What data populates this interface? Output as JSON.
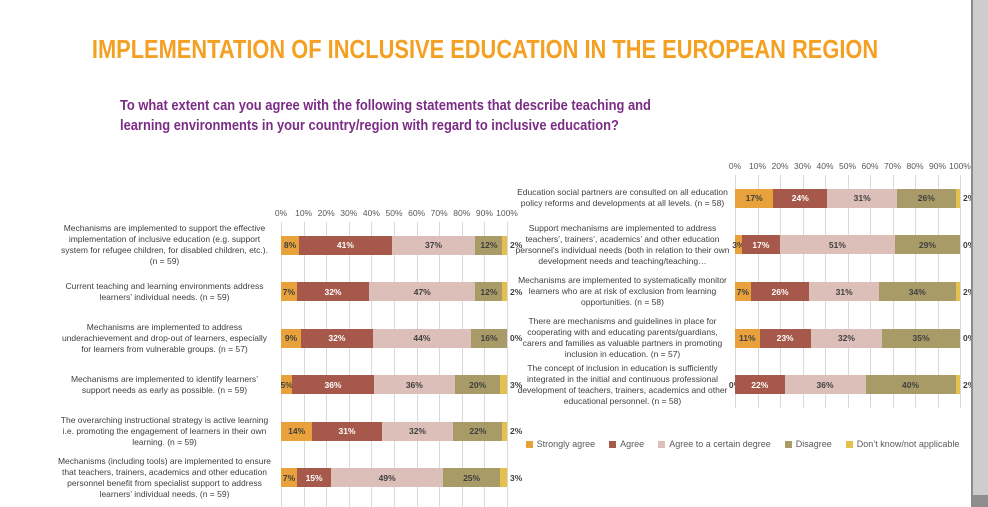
{
  "title": "IMPLEMENTATION OF INCLUSIVE EDUCATION IN THE EUROPEAN REGION",
  "subtitle": "To what extent can you agree with the following statements that describe teaching and learning environments in your country/region with regard to inclusive education?",
  "colors": {
    "title": "#F4A023",
    "subtitle": "#7B2C85",
    "strongly_agree": "#E9A23B",
    "agree": "#A6594A",
    "agree_certain": "#DCBFB8",
    "disagree": "#A89B68",
    "dont_know": "#E4C04F",
    "label_dark": "#3F3F3F",
    "label_light": "#FFFFFF",
    "axis_text": "#595959",
    "gridline": "#D9D9D9",
    "legend_text": "#595959"
  },
  "axis_ticks": [
    "0%",
    "10%",
    "20%",
    "30%",
    "40%",
    "50%",
    "60%",
    "70%",
    "80%",
    "90%",
    "100%"
  ],
  "legend": [
    {
      "label": "Strongly agree",
      "color_key": "strongly_agree"
    },
    {
      "label": "Agree",
      "color_key": "agree"
    },
    {
      "label": "Agree  to a certain degree",
      "color_key": "agree_certain"
    },
    {
      "label": "Disagree",
      "color_key": "disagree"
    },
    {
      "label": "Don’t know/not applicable",
      "color_key": "dont_know"
    }
  ],
  "chart_data": [
    {
      "type": "bar",
      "orientation": "horizontal",
      "stacked": true,
      "axis_position": "top",
      "grid": true,
      "xlim": [
        0,
        100
      ],
      "categories": [
        "Mechanisms are implemented to support the effective implementation of inclusive education (e.g. support system for refugee children, for disabled children, etc.). (n = 59)",
        "Current teaching and learning environments address learners’ individual needs. (n = 59)",
        "Mechanisms are implemented to address underachievement and drop-out of learners, especially for learners from vulnerable groups. (n = 57)",
        "Mechanisms are implemented to identify learners’ support needs as early as possible. (n = 59)",
        "The overarching instructional strategy is active learning i.e. promoting the engagement of learners in their own learning. (n = 59)",
        "Mechanisms (including tools) are implemented to ensure that teachers, trainers, academics and other education personnel benefit from specialist support to address learners’ individual needs. (n = 59)"
      ],
      "series": [
        {
          "name": "Strongly agree",
          "color_key": "strongly_agree",
          "values": [
            8,
            7,
            9,
            5,
            14,
            7
          ]
        },
        {
          "name": "Agree",
          "color_key": "agree",
          "values": [
            41,
            32,
            32,
            36,
            31,
            15
          ]
        },
        {
          "name": "Agree to a certain degree",
          "color_key": "agree_certain",
          "values": [
            37,
            47,
            44,
            36,
            32,
            49
          ]
        },
        {
          "name": "Disagree",
          "color_key": "disagree",
          "values": [
            12,
            12,
            16,
            20,
            22,
            25
          ]
        },
        {
          "name": "Don’t know/not applicable",
          "color_key": "dont_know",
          "values": [
            2,
            2,
            0,
            3,
            2,
            3
          ]
        }
      ]
    },
    {
      "type": "bar",
      "orientation": "horizontal",
      "stacked": true,
      "axis_position": "top",
      "grid": true,
      "xlim": [
        0,
        100
      ],
      "categories": [
        "Education social partners are consulted on all education policy reforms and developments at all levels. (n = 58)",
        "Support mechanisms are implemented to address teachers’, trainers’, academics’ and other education personnel’s individual needs (both in relation to their own development needs and teaching/teaching…",
        "Mechanisms are implemented to systematically monitor learners who are at risk of exclusion from learning opportunities. (n = 58)",
        "There are mechanisms and guidelines in place for cooperating with and educating parents/guardians, carers and families as valuable partners in promoting inclusion in education. (n = 57)",
        "The concept of inclusion in education is sufficiently integrated in the initial and continuous professional development of teachers, trainers, academics and other educational personnel.  (n = 58)"
      ],
      "series": [
        {
          "name": "Strongly agree",
          "color_key": "strongly_agree",
          "values": [
            17,
            3,
            7,
            11,
            0
          ]
        },
        {
          "name": "Agree",
          "color_key": "agree",
          "values": [
            24,
            17,
            26,
            23,
            22
          ]
        },
        {
          "name": "Agree to a certain degree",
          "color_key": "agree_certain",
          "values": [
            31,
            51,
            31,
            32,
            36
          ]
        },
        {
          "name": "Disagree",
          "color_key": "disagree",
          "values": [
            26,
            29,
            34,
            35,
            40
          ]
        },
        {
          "name": "Don’t know/not applicable",
          "color_key": "dont_know",
          "values": [
            2,
            0,
            2,
            0,
            2
          ]
        }
      ]
    }
  ]
}
